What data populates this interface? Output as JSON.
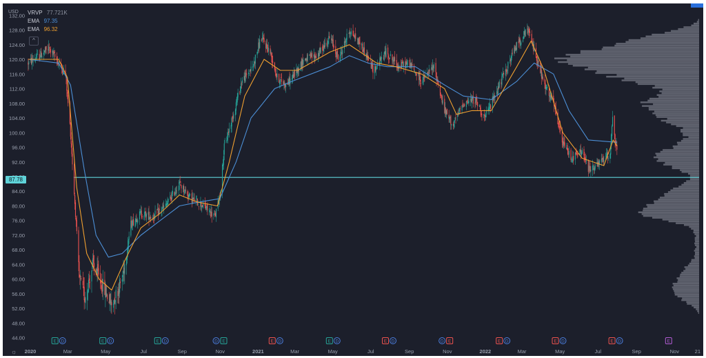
{
  "chart_data": {
    "type": "candlestick",
    "y_unit_label": "USD",
    "ylim": [
      43,
      133
    ],
    "y_ticks": [
      "132.00",
      "128.00",
      "124.00",
      "120.00",
      "116.00",
      "112.00",
      "108.00",
      "104.00",
      "100.00",
      "96.00",
      "92.00",
      "88.00",
      "84.00",
      "80.00",
      "76.00",
      "72.00",
      "68.00",
      "64.00",
      "60.00",
      "56.00",
      "52.00",
      "48.00",
      "44.00"
    ],
    "x_ticks": [
      "2020",
      "Mar",
      "May",
      "Jul",
      "Sep",
      "Nov",
      "2021",
      "Mar",
      "May",
      "Jul",
      "Sep",
      "Nov",
      "2022",
      "Mar",
      "May",
      "Jul",
      "Sep",
      "Nov",
      "21"
    ],
    "x_range": [
      "2020-01-01",
      "2022-12-15"
    ],
    "legend": {
      "vrvp": {
        "name": "VRVP",
        "value": "77.721K"
      },
      "ema_fast": {
        "name": "EMA",
        "value": "97.35",
        "color": "#4c8fd6"
      },
      "ema_slow": {
        "name": "EMA",
        "value": "96.32",
        "color": "#f0a030"
      }
    },
    "horizontal_line": {
      "value": 87.78,
      "label": "87.78",
      "color": "#5fd3d9"
    },
    "price_anchors": [
      [
        "2020-01-02",
        119
      ],
      [
        "2020-01-20",
        121
      ],
      [
        "2020-02-05",
        123
      ],
      [
        "2020-02-20",
        119
      ],
      [
        "2020-03-02",
        116
      ],
      [
        "2020-03-10",
        100
      ],
      [
        "2020-03-18",
        78
      ],
      [
        "2020-03-24",
        60
      ],
      [
        "2020-04-02",
        55
      ],
      [
        "2020-04-15",
        64
      ],
      [
        "2020-05-01",
        58
      ],
      [
        "2020-05-15",
        53
      ],
      [
        "2020-06-01",
        60
      ],
      [
        "2020-06-15",
        75
      ],
      [
        "2020-07-01",
        78
      ],
      [
        "2020-07-20",
        77
      ],
      [
        "2020-08-10",
        80
      ],
      [
        "2020-09-01",
        86
      ],
      [
        "2020-09-20",
        82
      ],
      [
        "2020-10-10",
        80
      ],
      [
        "2020-10-28",
        77
      ],
      [
        "2020-11-05",
        83
      ],
      [
        "2020-11-12",
        96
      ],
      [
        "2020-11-25",
        104
      ],
      [
        "2020-12-10",
        114
      ],
      [
        "2020-12-28",
        118
      ],
      [
        "2021-01-10",
        126
      ],
      [
        "2021-01-25",
        122
      ],
      [
        "2021-02-05",
        115
      ],
      [
        "2021-02-20",
        113
      ],
      [
        "2021-03-05",
        116
      ],
      [
        "2021-03-20",
        120
      ],
      [
        "2021-04-10",
        121
      ],
      [
        "2021-05-01",
        126
      ],
      [
        "2021-05-15",
        120
      ],
      [
        "2021-06-01",
        128
      ],
      [
        "2021-06-20",
        124
      ],
      [
        "2021-07-10",
        117
      ],
      [
        "2021-07-30",
        122
      ],
      [
        "2021-08-20",
        118
      ],
      [
        "2021-09-05",
        119
      ],
      [
        "2021-09-25",
        114
      ],
      [
        "2021-10-15",
        118
      ],
      [
        "2021-11-01",
        106
      ],
      [
        "2021-11-15",
        102
      ],
      [
        "2021-12-01",
        108
      ],
      [
        "2021-12-20",
        109
      ],
      [
        "2022-01-05",
        104
      ],
      [
        "2022-01-20",
        110
      ],
      [
        "2022-02-05",
        116
      ],
      [
        "2022-02-25",
        124
      ],
      [
        "2022-03-15",
        128
      ],
      [
        "2022-03-28",
        121
      ],
      [
        "2022-04-10",
        113
      ],
      [
        "2022-04-25",
        108
      ],
      [
        "2022-05-10",
        97
      ],
      [
        "2022-05-25",
        93
      ],
      [
        "2022-06-10",
        95
      ],
      [
        "2022-06-20",
        90
      ],
      [
        "2022-07-05",
        91
      ],
      [
        "2022-07-15",
        93
      ],
      [
        "2022-07-25",
        94
      ],
      [
        "2022-07-29",
        105
      ],
      [
        "2022-08-02",
        98
      ],
      [
        "2022-08-05",
        95
      ]
    ],
    "ema_fast_anchors": [
      [
        "2020-01-02",
        120
      ],
      [
        "2020-02-20",
        119
      ],
      [
        "2020-03-10",
        113
      ],
      [
        "2020-04-01",
        90
      ],
      [
        "2020-04-20",
        72
      ],
      [
        "2020-05-10",
        66
      ],
      [
        "2020-06-01",
        67
      ],
      [
        "2020-07-01",
        72
      ],
      [
        "2020-08-01",
        76
      ],
      [
        "2020-09-01",
        80
      ],
      [
        "2020-10-01",
        81
      ],
      [
        "2020-11-05",
        82
      ],
      [
        "2020-12-01",
        92
      ],
      [
        "2020-12-25",
        104
      ],
      [
        "2021-02-01",
        112
      ],
      [
        "2021-03-01",
        114
      ],
      [
        "2021-05-01",
        118
      ],
      [
        "2021-06-01",
        121
      ],
      [
        "2021-07-01",
        119
      ],
      [
        "2021-08-01",
        118
      ],
      [
        "2021-09-15",
        118
      ],
      [
        "2021-11-01",
        113
      ],
      [
        "2021-12-01",
        110
      ],
      [
        "2022-01-15",
        109
      ],
      [
        "2022-02-25",
        114
      ],
      [
        "2022-03-25",
        119
      ],
      [
        "2022-04-25",
        116
      ],
      [
        "2022-05-20",
        106
      ],
      [
        "2022-06-20",
        98
      ],
      [
        "2022-08-05",
        97.35
      ]
    ],
    "ema_slow_anchors": [
      [
        "2020-01-02",
        120
      ],
      [
        "2020-02-20",
        120
      ],
      [
        "2020-03-05",
        115
      ],
      [
        "2020-03-20",
        85
      ],
      [
        "2020-04-05",
        67
      ],
      [
        "2020-04-25",
        60
      ],
      [
        "2020-05-15",
        57
      ],
      [
        "2020-06-05",
        65
      ],
      [
        "2020-07-01",
        74
      ],
      [
        "2020-08-01",
        78
      ],
      [
        "2020-09-01",
        83
      ],
      [
        "2020-10-01",
        81
      ],
      [
        "2020-11-01",
        80
      ],
      [
        "2020-11-20",
        92
      ],
      [
        "2020-12-15",
        110
      ],
      [
        "2021-01-15",
        120
      ],
      [
        "2021-02-10",
        117
      ],
      [
        "2021-03-10",
        117
      ],
      [
        "2021-05-01",
        122
      ],
      [
        "2021-06-01",
        124
      ],
      [
        "2021-07-15",
        119
      ],
      [
        "2021-08-15",
        118
      ],
      [
        "2021-09-25",
        116
      ],
      [
        "2021-11-01",
        112
      ],
      [
        "2021-11-20",
        105
      ],
      [
        "2021-12-15",
        106
      ],
      [
        "2022-01-15",
        106
      ],
      [
        "2022-02-25",
        118
      ],
      [
        "2022-03-20",
        125
      ],
      [
        "2022-04-10",
        117
      ],
      [
        "2022-05-10",
        100
      ],
      [
        "2022-06-10",
        93
      ],
      [
        "2022-07-15",
        91
      ],
      [
        "2022-07-30",
        98
      ],
      [
        "2022-08-05",
        96.32
      ]
    ],
    "volume_profile_color": "#6b6f7a",
    "up_color": "#26a69a",
    "down_color": "#ef5350",
    "event_badges": [
      {
        "date": "2020-02-14",
        "items": [
          "E",
          "D"
        ],
        "kind": "earnings-positive"
      },
      {
        "date": "2020-05-01",
        "items": [
          "E",
          "D"
        ],
        "kind": "earnings-positive"
      },
      {
        "date": "2020-07-28",
        "items": [
          "E",
          "D"
        ],
        "kind": "earnings-positive"
      },
      {
        "date": "2020-10-30",
        "items": [
          "D",
          "E"
        ],
        "kind": "earnings-positive"
      },
      {
        "date": "2021-01-28",
        "items": [
          "E",
          "D"
        ],
        "kind": "earnings-negative"
      },
      {
        "date": "2021-04-30",
        "items": [
          "E",
          "D"
        ],
        "kind": "earnings-positive"
      },
      {
        "date": "2021-07-29",
        "items": [
          "E",
          "D"
        ],
        "kind": "earnings-negative"
      },
      {
        "date": "2021-10-28",
        "items": [
          "D",
          "E"
        ],
        "kind": "earnings-negative"
      },
      {
        "date": "2022-01-28",
        "items": [
          "E",
          "D"
        ],
        "kind": "earnings-negative"
      },
      {
        "date": "2022-04-28",
        "items": [
          "E",
          "D"
        ],
        "kind": "earnings-negative"
      },
      {
        "date": "2022-07-28",
        "items": [
          "E",
          "D"
        ],
        "kind": "earnings-negative"
      },
      {
        "date": "2022-10-27",
        "items": [
          "E"
        ],
        "kind": "earnings-upcoming"
      }
    ]
  }
}
